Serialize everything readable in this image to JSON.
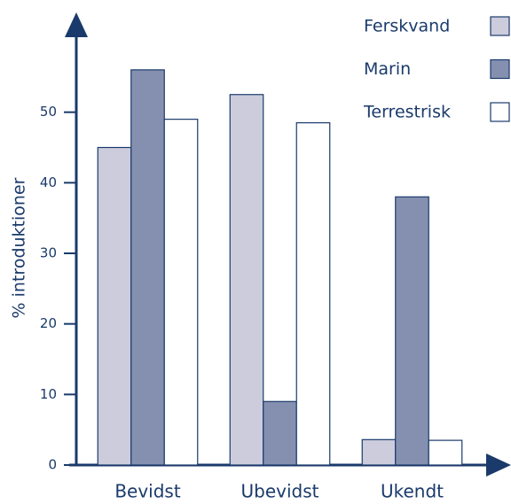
{
  "chart_data": {
    "type": "bar",
    "categories": [
      "Bevidst",
      "Ubevidst",
      "Ukendt"
    ],
    "series": [
      {
        "name": "Ferskvand",
        "color": "#ccccdd",
        "values": [
          45,
          52.5,
          3.6
        ]
      },
      {
        "name": "Marin",
        "color": "#8590b0",
        "values": [
          56,
          9,
          38
        ]
      },
      {
        "name": "Terrestrisk",
        "color": "#ffffff",
        "values": [
          49,
          48.5,
          3.5
        ]
      }
    ],
    "y_label": "% introduktioner",
    "ylim": [
      0,
      60
    ],
    "yticks": [
      0,
      10,
      20,
      30,
      40,
      50
    ],
    "legend": "top-right"
  }
}
